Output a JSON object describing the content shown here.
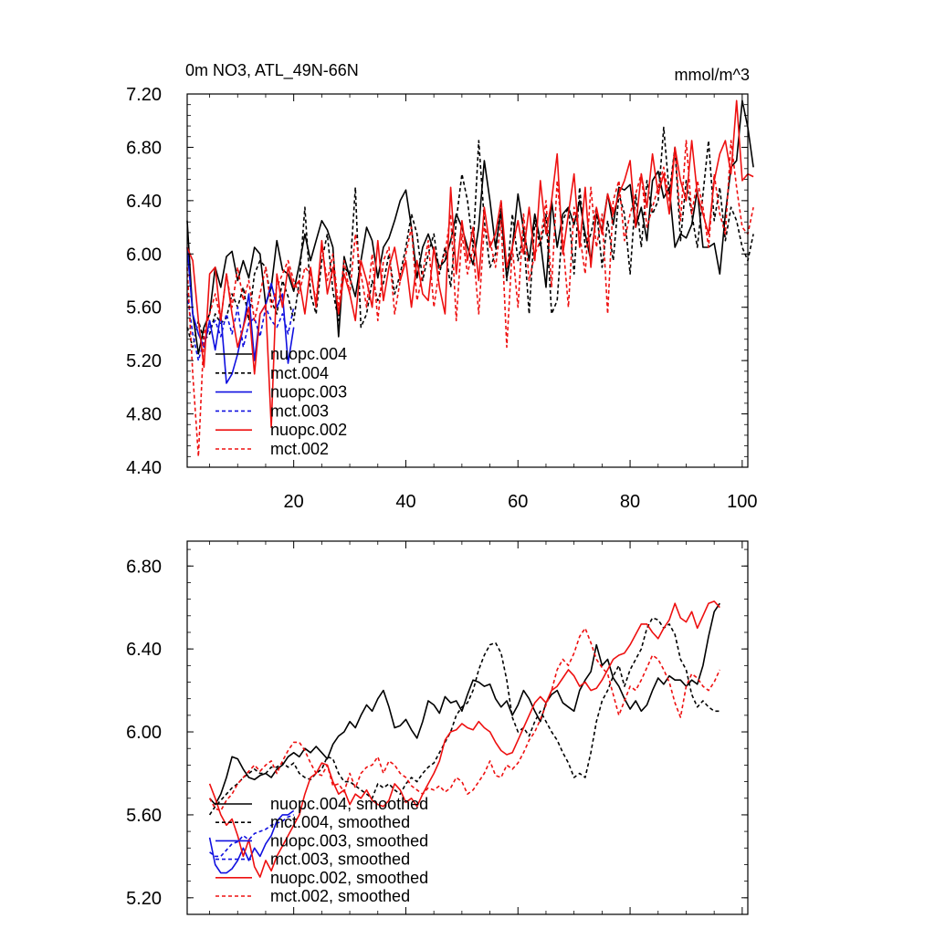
{
  "chart_data": [
    {
      "type": "line",
      "title": "0m NO3, ATL_49N-66N",
      "units": "mmol/m^3",
      "xlim": [
        1,
        101
      ],
      "ylim": [
        4.4,
        7.2
      ],
      "x_ticks": [
        20,
        40,
        60,
        80,
        100
      ],
      "y_ticks": [
        4.4,
        4.8,
        5.2,
        5.6,
        6.0,
        6.4,
        6.8,
        7.2
      ],
      "y_tick_labels": [
        "4.40",
        "4.80",
        "5.20",
        "5.60",
        "6.00",
        "6.40",
        "6.80",
        "7.20"
      ],
      "legend_position": "bottom-left",
      "series": [
        {
          "name": "nuopc.004",
          "color": "#000000",
          "dash": "solid",
          "x_start": 1,
          "values": [
            6.25,
            5.55,
            5.25,
            5.45,
            5.55,
            5.9,
            5.75,
            5.98,
            6.02,
            5.8,
            5.95,
            5.82,
            6.05,
            6.0,
            5.62,
            5.75,
            6.1,
            5.88,
            5.85,
            5.72,
            5.92,
            6.15,
            5.95,
            6.1,
            6.25,
            6.18,
            6.05,
            5.38,
            5.98,
            5.82,
            5.68,
            5.95,
            6.2,
            6.1,
            5.82,
            6.05,
            6.12,
            6.25,
            6.4,
            6.48,
            6.2,
            5.82,
            6.05,
            6.15,
            6.02,
            5.9,
            5.95,
            6.1,
            6.3,
            6.2,
            6.05,
            5.92,
            6.2,
            6.7,
            6.4,
            6.05,
            6.32,
            5.82,
            6.05,
            6.45,
            6.18,
            5.95,
            6.3,
            6.1,
            5.75,
            6.4,
            6.05,
            6.3,
            6.35,
            6.22,
            6.4,
            6.15,
            5.95,
            6.3,
            6.18,
            6.45,
            6.22,
            6.5,
            6.48,
            6.52,
            6.2,
            6.35,
            6.1,
            6.55,
            6.62,
            6.42,
            6.5,
            6.05,
            6.15,
            6.12,
            6.22,
            6.48,
            6.05,
            6.05,
            6.08,
            5.85,
            6.3,
            6.65,
            6.7,
            7.15,
            6.95,
            6.65
          ]
        },
        {
          "name": "mct.004",
          "color": "#000000",
          "dash": "dashed",
          "x_start": 1,
          "values": [
            5.45,
            5.3,
            5.5,
            5.35,
            5.4,
            5.55,
            5.48,
            5.52,
            5.7,
            5.6,
            5.75,
            5.5,
            5.85,
            5.95,
            5.9,
            5.65,
            5.55,
            5.8,
            5.68,
            5.5,
            5.8,
            6.35,
            5.7,
            5.55,
            5.95,
            6.15,
            5.72,
            5.5,
            5.9,
            5.85,
            6.5,
            5.45,
            5.55,
            5.8,
            5.65,
            5.78,
            6.0,
            5.7,
            5.85,
            6.05,
            6.3,
            6.15,
            5.8,
            6.0,
            6.15,
            5.85,
            6.05,
            5.75,
            6.25,
            6.6,
            6.4,
            6.05,
            6.85,
            6.25,
            5.9,
            6.0,
            6.4,
            5.8,
            6.3,
            5.95,
            6.15,
            5.55,
            6.25,
            6.05,
            6.3,
            5.55,
            5.65,
            6.25,
            6.35,
            5.85,
            6.5,
            6.05,
            6.15,
            6.35,
            5.9,
            6.25,
            5.95,
            6.45,
            6.3,
            5.85,
            6.45,
            6.05,
            6.55,
            6.3,
            6.4,
            6.95,
            6.45,
            6.8,
            6.1,
            6.55,
            6.3,
            6.05,
            6.45,
            6.85,
            6.25,
            6.5,
            6.1,
            6.35,
            6.25,
            6.05,
            5.95,
            6.15
          ]
        },
        {
          "name": "nuopc.003",
          "color": "#1010e0",
          "dash": "solid",
          "x_start": 1,
          "values": [
            6.05,
            5.55,
            5.4,
            5.3,
            5.5,
            5.28,
            5.55,
            5.03,
            5.1,
            5.25,
            5.45,
            5.7,
            5.2,
            5.55,
            5.62,
            5.78,
            5.6,
            5.7,
            5.18,
            5.45
          ]
        },
        {
          "name": "mct.003",
          "color": "#1010e0",
          "dash": "dashed",
          "x_start": 1,
          "values": [
            5.7,
            5.4,
            5.2,
            5.35,
            5.45,
            5.5,
            5.38,
            5.55,
            5.4,
            5.6,
            5.3,
            5.48,
            5.52,
            5.38,
            5.6,
            5.5,
            5.45,
            5.55,
            5.4,
            5.6
          ]
        },
        {
          "name": "nuopc.002",
          "color": "#ee1010",
          "dash": "solid",
          "x_start": 1,
          "values": [
            6.05,
            5.95,
            5.5,
            5.15,
            5.85,
            5.9,
            5.5,
            5.85,
            5.55,
            5.3,
            5.45,
            5.6,
            5.1,
            5.55,
            5.62,
            4.7,
            5.85,
            5.6,
            5.9,
            5.75,
            5.8,
            5.55,
            5.9,
            5.6,
            6.1,
            5.7,
            5.9,
            5.55,
            5.85,
            5.7,
            5.5,
            5.95,
            5.8,
            5.6,
            6.1,
            5.65,
            5.9,
            6.05,
            5.8,
            5.95,
            5.6,
            5.95,
            5.7,
            5.65,
            6.05,
            5.75,
            5.55,
            6.5,
            5.85,
            6.25,
            5.95,
            6.2,
            5.8,
            6.35,
            6.05,
            6.15,
            6.4,
            5.9,
            6.05,
            6.25,
            6.0,
            6.35,
            5.95,
            6.55,
            6.15,
            6.4,
            6.75,
            6.0,
            6.3,
            6.6,
            6.05,
            6.5,
            5.9,
            6.35,
            6.15,
            6.45,
            6.3,
            6.45,
            6.55,
            6.7,
            6.2,
            6.6,
            6.35,
            6.75,
            6.45,
            6.6,
            6.3,
            6.8,
            6.55,
            6.4,
            6.85,
            6.45,
            6.3,
            6.15,
            6.55,
            6.75,
            6.85,
            6.6,
            7.15,
            6.55,
            6.6,
            6.58
          ]
        },
        {
          "name": "mct.002",
          "color": "#ee1010",
          "dash": "dashed",
          "x_start": 1,
          "values": [
            5.9,
            5.1,
            4.48,
            5.4,
            5.55,
            5.7,
            5.5,
            5.85,
            5.6,
            5.9,
            5.65,
            5.8,
            5.5,
            5.7,
            5.9,
            5.6,
            5.75,
            5.85,
            5.95,
            5.8,
            5.7,
            5.9,
            5.85,
            5.65,
            6.05,
            5.8,
            6.0,
            5.6,
            5.95,
            5.7,
            6.15,
            5.85,
            5.6,
            6.0,
            5.5,
            5.95,
            6.05,
            5.55,
            5.8,
            6.0,
            6.2,
            5.65,
            5.85,
            6.1,
            5.6,
            5.9,
            6.0,
            6.3,
            5.5,
            6.15,
            5.85,
            6.05,
            5.55,
            6.2,
            6.1,
            5.9,
            6.25,
            5.3,
            6.05,
            5.6,
            6.3,
            5.8,
            6.0,
            6.1,
            6.4,
            5.75,
            6.55,
            6.1,
            5.6,
            6.35,
            6.15,
            5.85,
            6.5,
            6.05,
            6.3,
            5.55,
            6.4,
            6.55,
            6.1,
            6.3,
            6.45,
            6.6,
            6.2,
            6.35,
            6.5,
            6.65,
            6.4,
            6.8,
            6.25,
            6.85,
            6.3,
            6.55,
            6.35,
            6.05,
            6.6,
            6.3,
            6.15,
            6.85,
            6.5,
            6.2,
            6.15,
            6.35
          ]
        }
      ]
    },
    {
      "type": "line",
      "title": "",
      "units": "",
      "xlim": [
        1,
        101
      ],
      "ylim": [
        5.12,
        6.92
      ],
      "x_ticks": [
        20,
        40,
        60,
        80,
        100
      ],
      "y_ticks": [
        5.2,
        5.6,
        6.0,
        6.4,
        6.8
      ],
      "y_tick_labels": [
        "5.20",
        "5.60",
        "6.00",
        "6.40",
        "6.80"
      ],
      "show_x_tick_labels": false,
      "legend_position": "bottom-left",
      "series": [
        {
          "name": "nuopc.004, smoothed",
          "color": "#000000",
          "dash": "solid",
          "x_start": 5,
          "values": [
            5.68,
            5.65,
            5.7,
            5.78,
            5.88,
            5.87,
            5.82,
            5.78,
            5.77,
            5.79,
            5.8,
            5.78,
            5.82,
            5.84,
            5.88,
            5.9,
            5.88,
            5.92,
            5.9,
            5.93,
            5.9,
            5.87,
            5.94,
            5.98,
            6.0,
            6.05,
            6.02,
            6.08,
            6.13,
            6.1,
            6.16,
            6.2,
            6.12,
            6.02,
            6.03,
            6.06,
            6.01,
            5.97,
            6.05,
            6.15,
            6.13,
            6.09,
            6.17,
            6.14,
            6.15,
            6.1,
            6.18,
            6.25,
            6.24,
            6.22,
            6.23,
            6.16,
            6.12,
            6.15,
            6.08,
            6.13,
            6.2,
            6.16,
            6.1,
            6.05,
            6.14,
            6.18,
            6.2,
            6.14,
            6.12,
            6.1,
            6.2,
            6.25,
            6.29,
            6.42,
            6.32,
            6.35,
            6.26,
            6.22,
            6.16,
            6.11,
            6.15,
            6.1,
            6.13,
            6.2,
            6.26,
            6.23,
            6.27,
            6.25,
            6.25,
            6.22,
            6.25,
            6.23,
            6.32,
            6.46,
            6.58,
            6.62
          ]
        },
        {
          "name": "mct.004, smoothed",
          "color": "#000000",
          "dash": "dashed",
          "x_start": 5,
          "values": [
            5.6,
            5.64,
            5.67,
            5.7,
            5.73,
            5.75,
            5.78,
            5.8,
            5.82,
            5.8,
            5.8,
            5.83,
            5.83,
            5.85,
            5.83,
            5.85,
            5.8,
            5.78,
            5.77,
            5.8,
            5.82,
            5.88,
            5.87,
            5.8,
            5.76,
            5.76,
            5.74,
            5.72,
            5.7,
            5.68,
            5.75,
            5.73,
            5.75,
            5.72,
            5.7,
            5.75,
            5.78,
            5.76,
            5.8,
            5.83,
            5.85,
            5.9,
            5.95,
            6.0,
            6.08,
            6.12,
            6.14,
            6.2,
            6.3,
            6.37,
            6.42,
            6.43,
            6.38,
            6.25,
            6.07,
            6.0,
            6.02,
            5.98,
            6.05,
            6.1,
            6.05,
            6.0,
            5.96,
            5.9,
            5.85,
            5.78,
            5.8,
            5.78,
            5.9,
            6.05,
            6.15,
            6.2,
            6.27,
            6.32,
            6.22,
            6.3,
            6.35,
            6.4,
            6.5,
            6.55,
            6.54,
            6.5,
            6.52,
            6.47,
            6.35,
            6.3,
            6.18,
            6.12,
            6.15,
            6.12,
            6.1,
            6.1
          ]
        },
        {
          "name": "nuopc.003, smoothed",
          "color": "#1010e0",
          "dash": "solid",
          "x_start": 5,
          "values": [
            5.49,
            5.36,
            5.32,
            5.32,
            5.34,
            5.38,
            5.44,
            5.38,
            5.44,
            5.4,
            5.46,
            5.5,
            5.57,
            5.6,
            5.6,
            5.62
          ]
        },
        {
          "name": "mct.003, smoothed",
          "color": "#1010e0",
          "dash": "dashed",
          "x_start": 5,
          "values": [
            5.42,
            5.4,
            5.4,
            5.43,
            5.46,
            5.47,
            5.5,
            5.48,
            5.51,
            5.52,
            5.53,
            5.55,
            5.56,
            5.57,
            5.59,
            5.6
          ]
        },
        {
          "name": "nuopc.002, smoothed",
          "color": "#ee1010",
          "dash": "solid",
          "x_start": 5,
          "values": [
            5.75,
            5.68,
            5.6,
            5.55,
            5.58,
            5.5,
            5.4,
            5.48,
            5.35,
            5.3,
            5.38,
            5.33,
            5.4,
            5.45,
            5.5,
            5.55,
            5.6,
            5.7,
            5.78,
            5.8,
            5.85,
            5.84,
            5.76,
            5.7,
            5.72,
            5.65,
            5.7,
            5.68,
            5.72,
            5.67,
            5.65,
            5.64,
            5.67,
            5.75,
            5.72,
            5.66,
            5.68,
            5.64,
            5.7,
            5.75,
            5.8,
            5.86,
            5.96,
            6.0,
            6.01,
            6.04,
            6.02,
            6.01,
            6.05,
            6.02,
            6.0,
            5.95,
            5.91,
            5.89,
            5.9,
            5.96,
            6.02,
            6.08,
            6.14,
            6.17,
            6.14,
            6.2,
            6.22,
            6.26,
            6.3,
            6.27,
            6.22,
            6.24,
            6.2,
            6.21,
            6.25,
            6.3,
            6.35,
            6.37,
            6.38,
            6.42,
            6.47,
            6.52,
            6.52,
            6.48,
            6.45,
            6.5,
            6.54,
            6.62,
            6.55,
            6.53,
            6.58,
            6.5,
            6.56,
            6.62,
            6.63,
            6.6
          ]
        },
        {
          "name": "mct.002, smoothed",
          "color": "#ee1010",
          "dash": "dashed",
          "x_start": 5,
          "values": [
            5.68,
            5.63,
            5.62,
            5.67,
            5.7,
            5.75,
            5.78,
            5.81,
            5.84,
            5.81,
            5.84,
            5.86,
            5.8,
            5.86,
            5.91,
            5.95,
            5.95,
            5.91,
            5.85,
            5.8,
            5.79,
            5.84,
            5.74,
            5.75,
            5.71,
            5.8,
            5.73,
            5.8,
            5.83,
            5.84,
            5.88,
            5.8,
            5.86,
            5.84,
            5.8,
            5.78,
            5.74,
            5.72,
            5.7,
            5.73,
            5.72,
            5.74,
            5.71,
            5.73,
            5.78,
            5.76,
            5.7,
            5.72,
            5.76,
            5.8,
            5.86,
            5.79,
            5.78,
            5.84,
            5.82,
            5.85,
            5.9,
            5.96,
            6.0,
            6.06,
            6.13,
            6.2,
            6.3,
            6.35,
            6.32,
            6.38,
            6.46,
            6.5,
            6.43,
            6.35,
            6.31,
            6.28,
            6.18,
            6.08,
            6.15,
            6.22,
            6.2,
            6.25,
            6.31,
            6.37,
            6.35,
            6.3,
            6.24,
            6.14,
            6.07,
            6.22,
            6.28,
            6.26,
            6.22,
            6.2,
            6.24,
            6.3
          ]
        }
      ]
    }
  ]
}
